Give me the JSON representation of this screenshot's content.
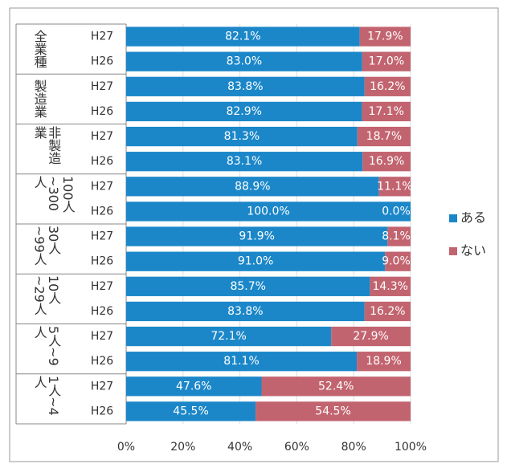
{
  "chart_data": {
    "type": "stacked_barh",
    "groups": [
      "全業種",
      "製造業",
      "非製造業",
      "100人~300人",
      "30人~99人",
      "10人~29人",
      "5人~9人",
      "1人~4人"
    ],
    "categories": [
      "H27",
      "H26",
      "H27",
      "H26",
      "H27",
      "H26",
      "H27",
      "H26",
      "H27",
      "H26",
      "H27",
      "H26",
      "H27",
      "H26",
      "H27",
      "H26"
    ],
    "series": [
      {
        "name": "ある",
        "color": "#1b87c9",
        "values": [
          82.1,
          83.0,
          83.8,
          82.9,
          81.3,
          83.1,
          88.9,
          100.0,
          91.9,
          91.0,
          85.7,
          83.8,
          72.1,
          81.1,
          47.6,
          45.5
        ],
        "value_labels": [
          "82.1%",
          "83.0%",
          "83.8%",
          "82.9%",
          "81.3%",
          "83.1%",
          "88.9%",
          "100.0%",
          "91.9%",
          "91.0%",
          "85.7%",
          "83.8%",
          "72.1%",
          "81.1%",
          "47.6%",
          "45.5%"
        ]
      },
      {
        "name": "ない",
        "color": "#c2646f",
        "values": [
          17.9,
          17.0,
          16.2,
          17.1,
          18.7,
          16.9,
          11.1,
          0.0,
          8.1,
          9.0,
          14.3,
          16.2,
          27.9,
          18.9,
          52.4,
          54.5
        ],
        "value_labels": [
          "17.9%",
          "17.0%",
          "16.2%",
          "17.1%",
          "18.7%",
          "16.9%",
          "11.1%",
          "0.0%",
          "8.1%",
          "9.0%",
          "14.3%",
          "16.2%",
          "27.9%",
          "18.9%",
          "52.4%",
          "54.5%"
        ]
      }
    ],
    "xlim": [
      0,
      100
    ],
    "xticks": [
      {
        "value": 0,
        "label": "0%"
      },
      {
        "value": 20,
        "label": "20%"
      },
      {
        "value": 40,
        "label": "40%"
      },
      {
        "value": 60,
        "label": "60%"
      },
      {
        "value": 80,
        "label": "80%"
      },
      {
        "value": 100,
        "label": "100%"
      }
    ],
    "legend": "right"
  }
}
